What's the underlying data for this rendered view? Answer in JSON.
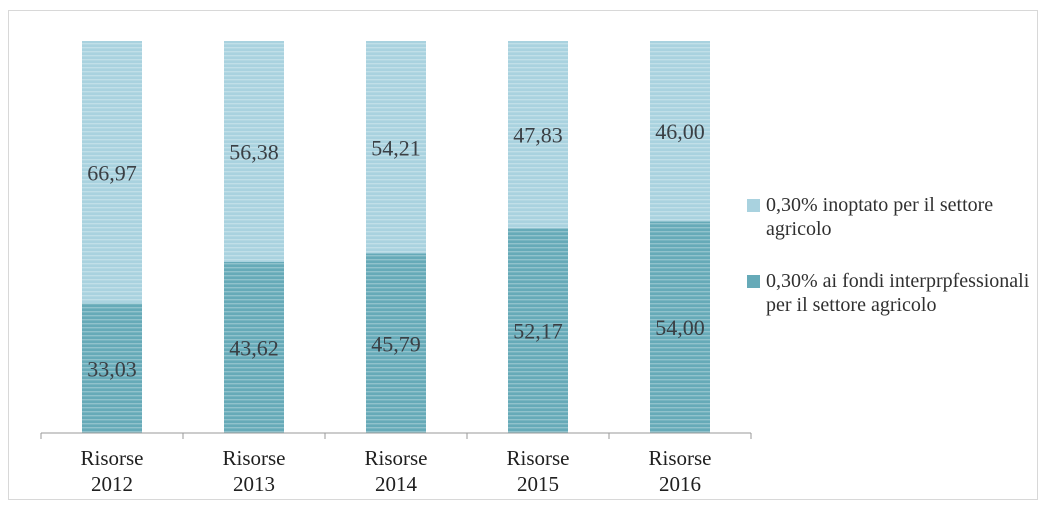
{
  "chart_data": {
    "type": "bar",
    "stacked": true,
    "categories": [
      "Risorse 2012",
      "Risorse 2013",
      "Risorse 2014",
      "Risorse 2015",
      "Risorse 2016"
    ],
    "category_lines": [
      [
        "Risorse",
        "2012"
      ],
      [
        "Risorse",
        "2013"
      ],
      [
        "Risorse",
        "2014"
      ],
      [
        "Risorse",
        "2015"
      ],
      [
        "Risorse",
        "2016"
      ]
    ],
    "series": [
      {
        "name": "0,30% ai fondi interprpfessionali per il settore agricolo",
        "values": [
          33.03,
          43.62,
          45.79,
          52.17,
          54.0
        ],
        "labels": [
          "33,03",
          "43,62",
          "45,79",
          "52,17",
          "54,00"
        ],
        "color": "#66aab8"
      },
      {
        "name": "0,30% inoptato per il settore agricolo",
        "values": [
          66.97,
          56.38,
          54.21,
          47.83,
          46.0
        ],
        "labels": [
          "66,97",
          "56,38",
          "54,21",
          "47,83",
          "46,00"
        ],
        "color": "#a9d2df"
      }
    ],
    "ylim": [
      0,
      100
    ],
    "grid": false,
    "legend": "right",
    "title": "",
    "xlabel": "",
    "ylabel": ""
  },
  "legend": {
    "items": [
      {
        "label": "0,30% inoptato per il settore agricolo",
        "color": "#a9d2df"
      },
      {
        "label": "0,30% ai fondi interprpfessionali per il settore agricolo",
        "color": "#66aab8"
      }
    ]
  }
}
